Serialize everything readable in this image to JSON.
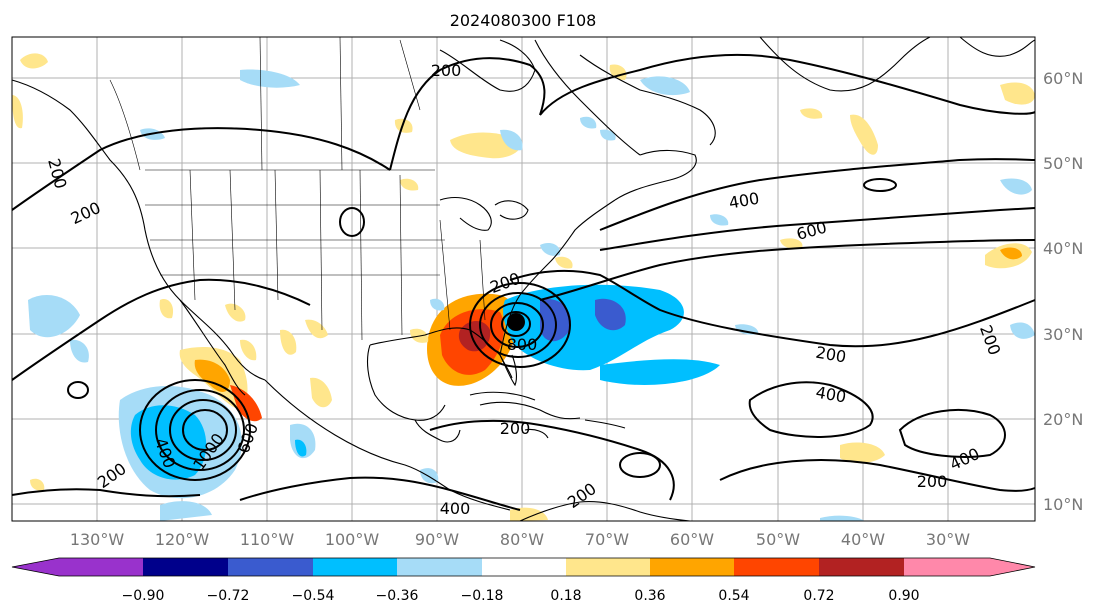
{
  "title": "2024080300 F108",
  "map": {
    "lon_ticks": [
      "130°W",
      "120°W",
      "110°W",
      "100°W",
      "90°W",
      "80°W",
      "70°W",
      "60°W",
      "50°W",
      "40°W",
      "30°W"
    ],
    "lat_ticks": [
      "60°N",
      "50°N",
      "40°N",
      "30°N",
      "20°N",
      "10°N"
    ],
    "contour_labels": [
      "200",
      "200",
      "200",
      "200",
      "200",
      "200",
      "200",
      "200",
      "200",
      "200",
      "400",
      "400",
      "400",
      "400",
      "400",
      "600",
      "600",
      "800",
      "1000"
    ],
    "colors": {
      "land_line": "#000000",
      "grid": "#b0b0b0",
      "contour": "#000000"
    }
  },
  "colorbar": {
    "ticks": [
      "−0.90",
      "−0.72",
      "−0.54",
      "−0.36",
      "−0.18",
      "0.18",
      "0.36",
      "0.54",
      "0.72",
      "0.90"
    ],
    "colors": [
      "#9932cc",
      "#00008b",
      "#3a5bcf",
      "#00bfff",
      "#a6dcf7",
      "#ffffff",
      "#ffe68c",
      "#ffa500",
      "#ff4500",
      "#b22222",
      "#ff88aa"
    ],
    "under_color": "#9932cc",
    "over_color": "#ff88aa"
  }
}
